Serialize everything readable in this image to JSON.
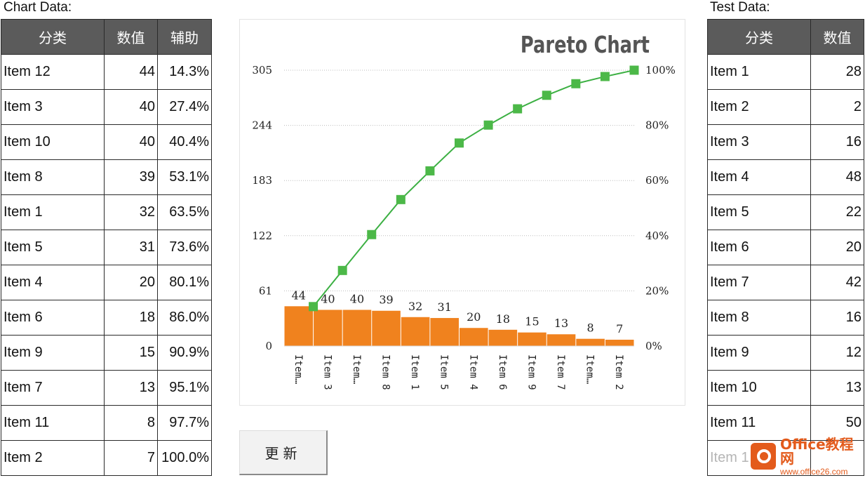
{
  "left_panel": {
    "label": "Chart Data:",
    "headers": [
      "分类",
      "数值",
      "辅助"
    ],
    "rows": [
      {
        "name": "Item 12",
        "value": "44",
        "cum": "14.3%"
      },
      {
        "name": "Item 3",
        "value": "40",
        "cum": "27.4%"
      },
      {
        "name": "Item 10",
        "value": "40",
        "cum": "40.4%"
      },
      {
        "name": "Item 8",
        "value": "39",
        "cum": "53.1%"
      },
      {
        "name": "Item 1",
        "value": "32",
        "cum": "63.5%"
      },
      {
        "name": "Item 5",
        "value": "31",
        "cum": "73.6%"
      },
      {
        "name": "Item 4",
        "value": "20",
        "cum": "80.1%"
      },
      {
        "name": "Item 6",
        "value": "18",
        "cum": "86.0%"
      },
      {
        "name": "Item 9",
        "value": "15",
        "cum": "90.9%"
      },
      {
        "name": "Item 7",
        "value": "13",
        "cum": "95.1%"
      },
      {
        "name": "Item 11",
        "value": "8",
        "cum": "97.7%"
      },
      {
        "name": "Item 2",
        "value": "7",
        "cum": "100.0%"
      }
    ]
  },
  "right_panel": {
    "label": "Test Data:",
    "headers": [
      "分类",
      "数值"
    ],
    "rows": [
      {
        "name": "Item 1",
        "value": "28"
      },
      {
        "name": "Item 2",
        "value": "2"
      },
      {
        "name": "Item 3",
        "value": "16"
      },
      {
        "name": "Item 4",
        "value": "48"
      },
      {
        "name": "Item 5",
        "value": "22"
      },
      {
        "name": "Item 6",
        "value": "20"
      },
      {
        "name": "Item 7",
        "value": "42"
      },
      {
        "name": "Item 8",
        "value": "16"
      },
      {
        "name": "Item 9",
        "value": "12"
      },
      {
        "name": "Item 10",
        "value": "13"
      },
      {
        "name": "Item 11",
        "value": "50"
      },
      {
        "name": "Item 1",
        "value": ""
      }
    ]
  },
  "button": {
    "update_label": "更新"
  },
  "watermark": {
    "title": "Office教程网",
    "url": "www.office26.com"
  },
  "colors": {
    "bar": "#f0821e",
    "line": "#3cb043",
    "marker": "#4cb848",
    "header_bg": "#5b5b5b",
    "title": "#555555"
  },
  "chart_data": {
    "type": "bar",
    "title": "Pareto Chart",
    "categories": [
      "Item…",
      "Item 3",
      "Item…",
      "Item 8",
      "Item 1",
      "Item 5",
      "Item 4",
      "Item 6",
      "Item 9",
      "Item 7",
      "Item…",
      "Item 2"
    ],
    "series": [
      {
        "type": "bar",
        "values": [
          44,
          40,
          40,
          39,
          32,
          31,
          20,
          18,
          15,
          13,
          8,
          7
        ],
        "data_labels": true
      },
      {
        "type": "line",
        "axis": "secondary",
        "values": [
          0.143,
          0.274,
          0.404,
          0.531,
          0.635,
          0.736,
          0.801,
          0.86,
          0.909,
          0.951,
          0.977,
          1.0
        ]
      }
    ],
    "y_ticks": [
      "0",
      "61",
      "122",
      "183",
      "244",
      "305"
    ],
    "ylim": [
      0,
      305
    ],
    "y2_ticks": [
      "0%",
      "20%",
      "40%",
      "60%",
      "80%",
      "100%"
    ],
    "y2lim": [
      0,
      1
    ],
    "grid": "horizontal-dotted",
    "legend": "none"
  }
}
